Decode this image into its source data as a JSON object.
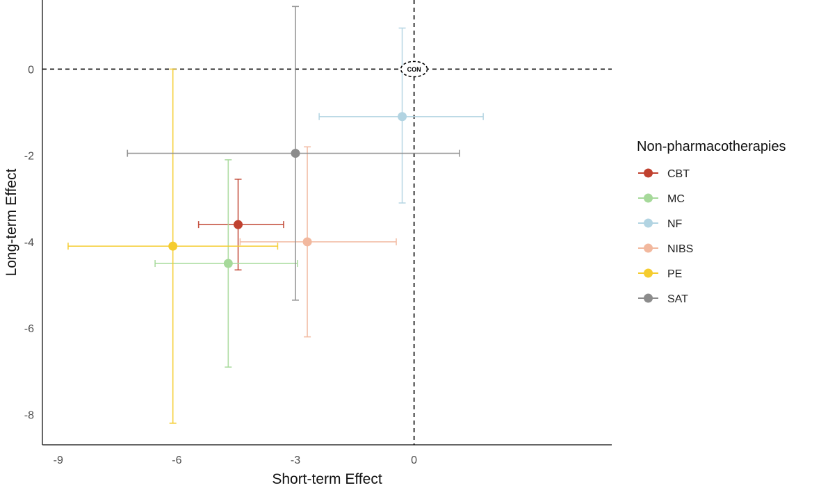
{
  "chart_data": {
    "type": "scatter",
    "xlabel": "Short-term Effect",
    "ylabel": "Long-term Effect",
    "xlim": [
      -9.4,
      5.0
    ],
    "ylim": [
      -8.7,
      1.6
    ],
    "x_ticks": [
      -9,
      -6,
      -3,
      0
    ],
    "y_ticks": [
      0,
      -2,
      -4,
      -6,
      -8
    ],
    "x_tick_labels": [
      "-9",
      "-6",
      "-3",
      "0"
    ],
    "y_tick_labels": [
      "0",
      "-2",
      "-4",
      "-6",
      "-8"
    ],
    "grid": false,
    "legend_position": "right",
    "legend_title": "Non-pharmacotherapies",
    "reference_lines": {
      "x": 0,
      "y": 0,
      "style": "dashed"
    },
    "reference_point": {
      "label": "CON",
      "x": 0,
      "y": 0
    },
    "series": [
      {
        "name": "CBT",
        "color": "#c0412f",
        "x": -4.45,
        "y": -3.6,
        "x_lo": -5.45,
        "x_hi": -3.3,
        "y_lo": -4.65,
        "y_hi": -2.55
      },
      {
        "name": "MC",
        "color": "#a6d99a",
        "x": -4.7,
        "y": -4.5,
        "x_lo": -6.55,
        "x_hi": -2.95,
        "y_lo": -6.9,
        "y_hi": -2.1
      },
      {
        "name": "NF",
        "color": "#b2d4e2",
        "x": -0.3,
        "y": -1.1,
        "x_lo": -2.4,
        "x_hi": 1.75,
        "y_lo": -3.1,
        "y_hi": 0.95
      },
      {
        "name": "NIBS",
        "color": "#f2b89e",
        "x": -2.7,
        "y": -4.0,
        "x_lo": -4.4,
        "x_hi": -0.45,
        "y_lo": -6.2,
        "y_hi": -1.8
      },
      {
        "name": "PE",
        "color": "#f5cc2e",
        "x": -6.1,
        "y": -4.1,
        "x_lo": -8.75,
        "x_hi": -3.45,
        "y_lo": -8.2,
        "y_hi": 0.0
      },
      {
        "name": "SAT",
        "color": "#8c8c8c",
        "x": -3.0,
        "y": -1.95,
        "x_lo": -7.25,
        "x_hi": 1.15,
        "y_lo": -5.35,
        "y_hi": 1.45
      }
    ]
  }
}
